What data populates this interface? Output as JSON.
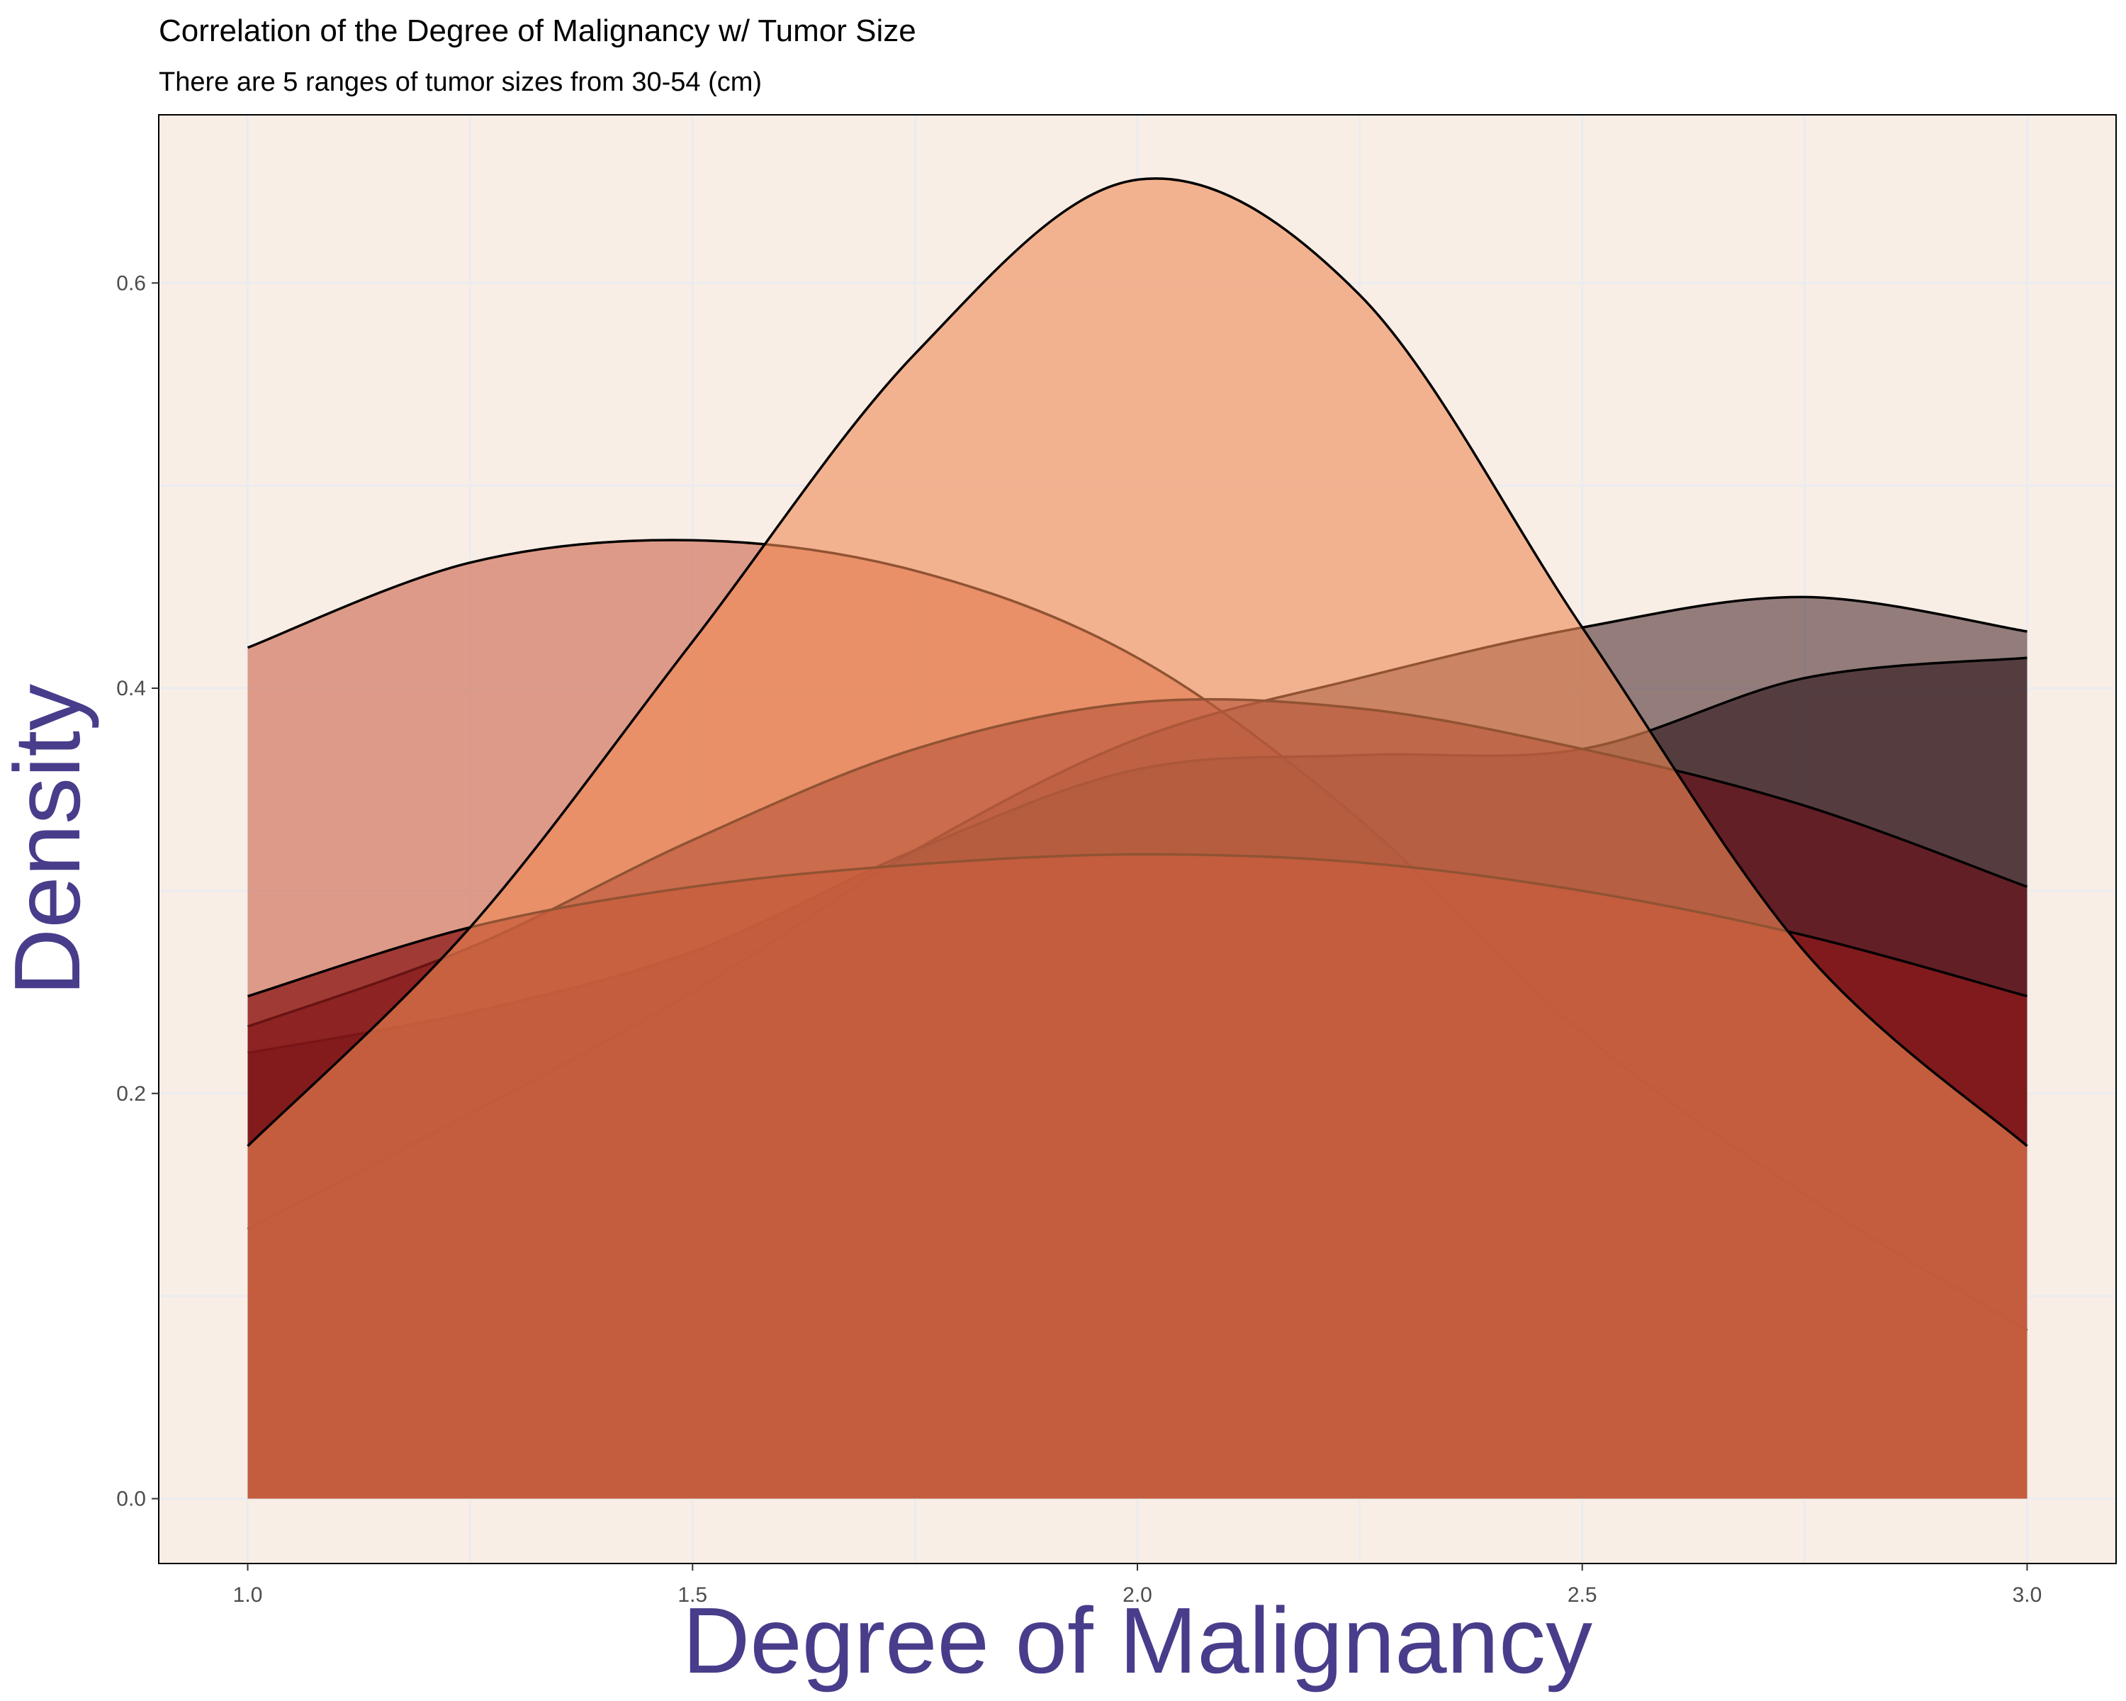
{
  "chart_data": {
    "type": "area",
    "title": "Correlation of the Degree of Malignancy w/ Tumor Size",
    "subtitle": "There are 5 ranges of tumor sizes from 30-54 (cm)",
    "xlabel": "Degree of Malignancy",
    "ylabel": "Density",
    "xlim": [
      0.9,
      3.1
    ],
    "ylim": [
      -0.032,
      0.683
    ],
    "x_ticks": [
      1.0,
      1.5,
      2.0,
      2.5,
      3.0
    ],
    "x_tick_labels": [
      "1.0",
      "1.5",
      "2.0",
      "2.5",
      "3.0"
    ],
    "y_ticks": [
      0.0,
      0.2,
      0.4,
      0.6
    ],
    "y_tick_labels": [
      "0.0",
      "0.2",
      "0.4",
      "0.6"
    ],
    "grid": true,
    "legend": "none",
    "colors": {
      "panel_background": "#f8eee5",
      "grid": "#ebebf0",
      "axis_title": "#483d8b",
      "border": "#000000"
    },
    "series": [
      {
        "x": [
          1.0,
          1.25,
          1.5,
          1.75,
          2.0,
          2.25,
          2.5,
          2.75,
          3.0
        ],
        "y": [
          0.42,
          0.462,
          0.473,
          0.458,
          0.415,
          0.335,
          0.23,
          0.15,
          0.083
        ],
        "fill": "#c8553d",
        "opacity": 0.55,
        "stroke": "#000000"
      },
      {
        "x": [
          1.0,
          1.25,
          1.5,
          1.75,
          2.0,
          2.25,
          2.5,
          2.75,
          3.0
        ],
        "y": [
          0.133,
          0.19,
          0.25,
          0.32,
          0.375,
          0.405,
          0.43,
          0.445,
          0.428
        ],
        "fill": "#2e0a0f",
        "opacity": 0.5,
        "stroke": "#000000"
      },
      {
        "x": [
          1.0,
          1.25,
          1.5,
          1.75,
          2.0,
          2.25,
          2.5,
          2.75,
          3.0
        ],
        "y": [
          0.22,
          0.24,
          0.27,
          0.32,
          0.36,
          0.367,
          0.37,
          0.405,
          0.415
        ],
        "fill": "#2b1418",
        "opacity": 0.6,
        "stroke": "#000000"
      },
      {
        "x": [
          1.0,
          1.25,
          1.5,
          1.75,
          2.0,
          2.25,
          2.5,
          2.75,
          3.0
        ],
        "y": [
          0.233,
          0.272,
          0.325,
          0.37,
          0.393,
          0.39,
          0.37,
          0.342,
          0.302
        ],
        "fill": "#6b1018",
        "opacity": 0.65,
        "stroke": "#000000"
      },
      {
        "x": [
          1.0,
          1.25,
          1.5,
          1.75,
          2.0,
          2.25,
          2.5,
          2.75,
          3.0
        ],
        "y": [
          0.248,
          0.282,
          0.302,
          0.313,
          0.318,
          0.314,
          0.3,
          0.278,
          0.248
        ],
        "fill": "#8b1a1a",
        "opacity": 0.75,
        "stroke": "#000000"
      },
      {
        "x": [
          1.0,
          1.25,
          1.5,
          1.75,
          2.0,
          2.25,
          2.5,
          2.75,
          3.0
        ],
        "y": [
          0.174,
          0.282,
          0.423,
          0.565,
          0.651,
          0.594,
          0.43,
          0.27,
          0.174
        ],
        "fill": "#f08a55",
        "opacity": 0.6,
        "stroke": "#000000"
      }
    ]
  }
}
